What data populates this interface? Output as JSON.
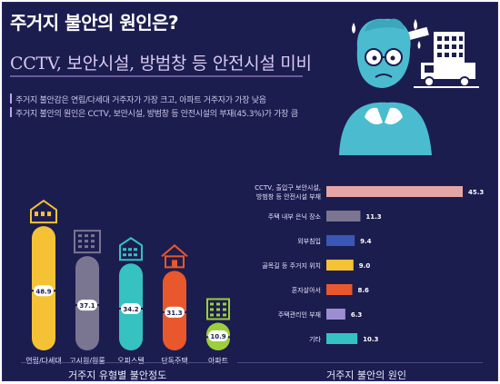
{
  "header": {
    "title": "주거지 불안의 원인은?",
    "subtitle": "CCTV, 보안시설, 방범창 등 안전시설 미비",
    "bullets": [
      "주거지 불안감은 연립/다세대 거주자가 가장 크고, 아파트 거주자가 가장 낮음",
      "주거지 불안의 원인은 CCTV, 보안시설, 방범창 등 안전시설의 부재(45.3%)가 가장 큼"
    ]
  },
  "colors": {
    "background": "#1c1d4f",
    "yellow": "#f5c236",
    "gray": "#7a7591",
    "teal": "#35c2c0",
    "orange": "#e8582c",
    "green": "#9ccf3c",
    "pink": "#e6a5a5",
    "blue": "#3a57b5",
    "mascot": "#4bbcd0"
  },
  "chart_data": [
    {
      "type": "bar",
      "title": "거주지 유형별 불안정도",
      "categories": [
        "연립/다세대",
        "고시원/원룸",
        "오피스텔",
        "단독주택",
        "아파트"
      ],
      "values": [
        48.9,
        37.1,
        34.2,
        31.3,
        10.9
      ],
      "value_labels": [
        "48.9",
        "37.1",
        "34.2",
        "31.3",
        "10.9"
      ],
      "colors": [
        "#f5c236",
        "#7a7591",
        "#35c2c0",
        "#e8582c",
        "#9ccf3c"
      ],
      "icons": [
        "row-house-icon",
        "goshiwon-building-icon",
        "officetel-icon",
        "detached-house-icon",
        "apartment-icon"
      ],
      "ylim": [
        0,
        50
      ]
    },
    {
      "type": "bar",
      "orientation": "horizontal",
      "title": "거주지 불안의 원인",
      "categories": [
        "CCTV, 출입구 보안시설,\n방범창 등 안전시설 부재",
        "주택 내부 은닉 장소",
        "외부침입",
        "골목길 등 주거지 위치",
        "혼자살아서",
        "주택관리인 부재",
        "기타"
      ],
      "values": [
        45.3,
        11.3,
        9.4,
        9.0,
        8.6,
        6.3,
        10.3
      ],
      "value_labels": [
        "45.3",
        "11.3",
        "9.4",
        "9.0",
        "8.6",
        "6.3",
        "10.3"
      ],
      "colors": [
        "#e6a5a5",
        "#7a7591",
        "#3a57b5",
        "#f5c236",
        "#e8582c",
        "#9b8fd2",
        "#35c2c0"
      ],
      "xlim": [
        0,
        45.3
      ]
    }
  ]
}
